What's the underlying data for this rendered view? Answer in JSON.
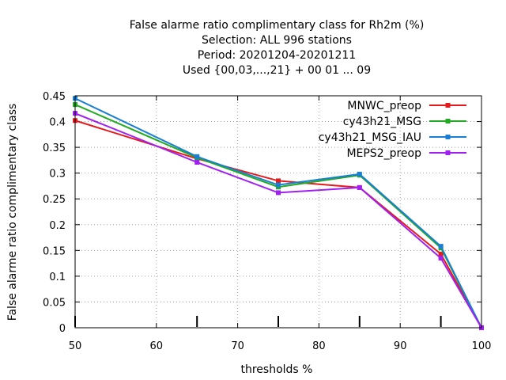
{
  "chart_data": {
    "type": "line",
    "title_lines": [
      "False alarme ratio complimentary class  for Rh2m (%)",
      "Selection: ALL    996 stations",
      "Period: 20201204-20201211",
      "Used {00,03,...,21} + 00 01 ... 09"
    ],
    "xlabel": "thresholds %",
    "ylabel": "False alarme ratio complimentary class",
    "xlim": [
      50,
      100
    ],
    "ylim": [
      0,
      0.45
    ],
    "x_ticks": [
      50,
      60,
      70,
      80,
      90,
      100
    ],
    "x_tick_labels": [
      "50",
      "60",
      "70",
      "80",
      "90",
      "100"
    ],
    "y_ticks": [
      0,
      0.05,
      0.1,
      0.15,
      0.2,
      0.25,
      0.3,
      0.35,
      0.4,
      0.45
    ],
    "y_tick_labels": [
      "0",
      "0.05",
      "0.1",
      "0.15",
      "0.2",
      "0.25",
      "0.3",
      "0.35",
      "0.4",
      "0.45"
    ],
    "grid": true,
    "legend_position": "top-right",
    "x": [
      50,
      65,
      75,
      85,
      95,
      100
    ],
    "series": [
      {
        "name": "MNWC_preop",
        "color": "#e41a1c",
        "values": [
          0.402,
          0.328,
          0.285,
          0.272,
          0.143,
          0.0
        ]
      },
      {
        "name": "cy43h21_MSG",
        "color": "#22aa22",
        "values": [
          0.433,
          0.33,
          0.273,
          0.296,
          0.155,
          0.0
        ]
      },
      {
        "name": "cy43h21_MSG_IAU",
        "color": "#1a7fd4",
        "values": [
          0.445,
          0.332,
          0.277,
          0.298,
          0.158,
          0.0
        ]
      },
      {
        "name": "MEPS2_preop",
        "color": "#a020f0",
        "values": [
          0.416,
          0.321,
          0.262,
          0.272,
          0.135,
          0.0
        ]
      }
    ]
  }
}
